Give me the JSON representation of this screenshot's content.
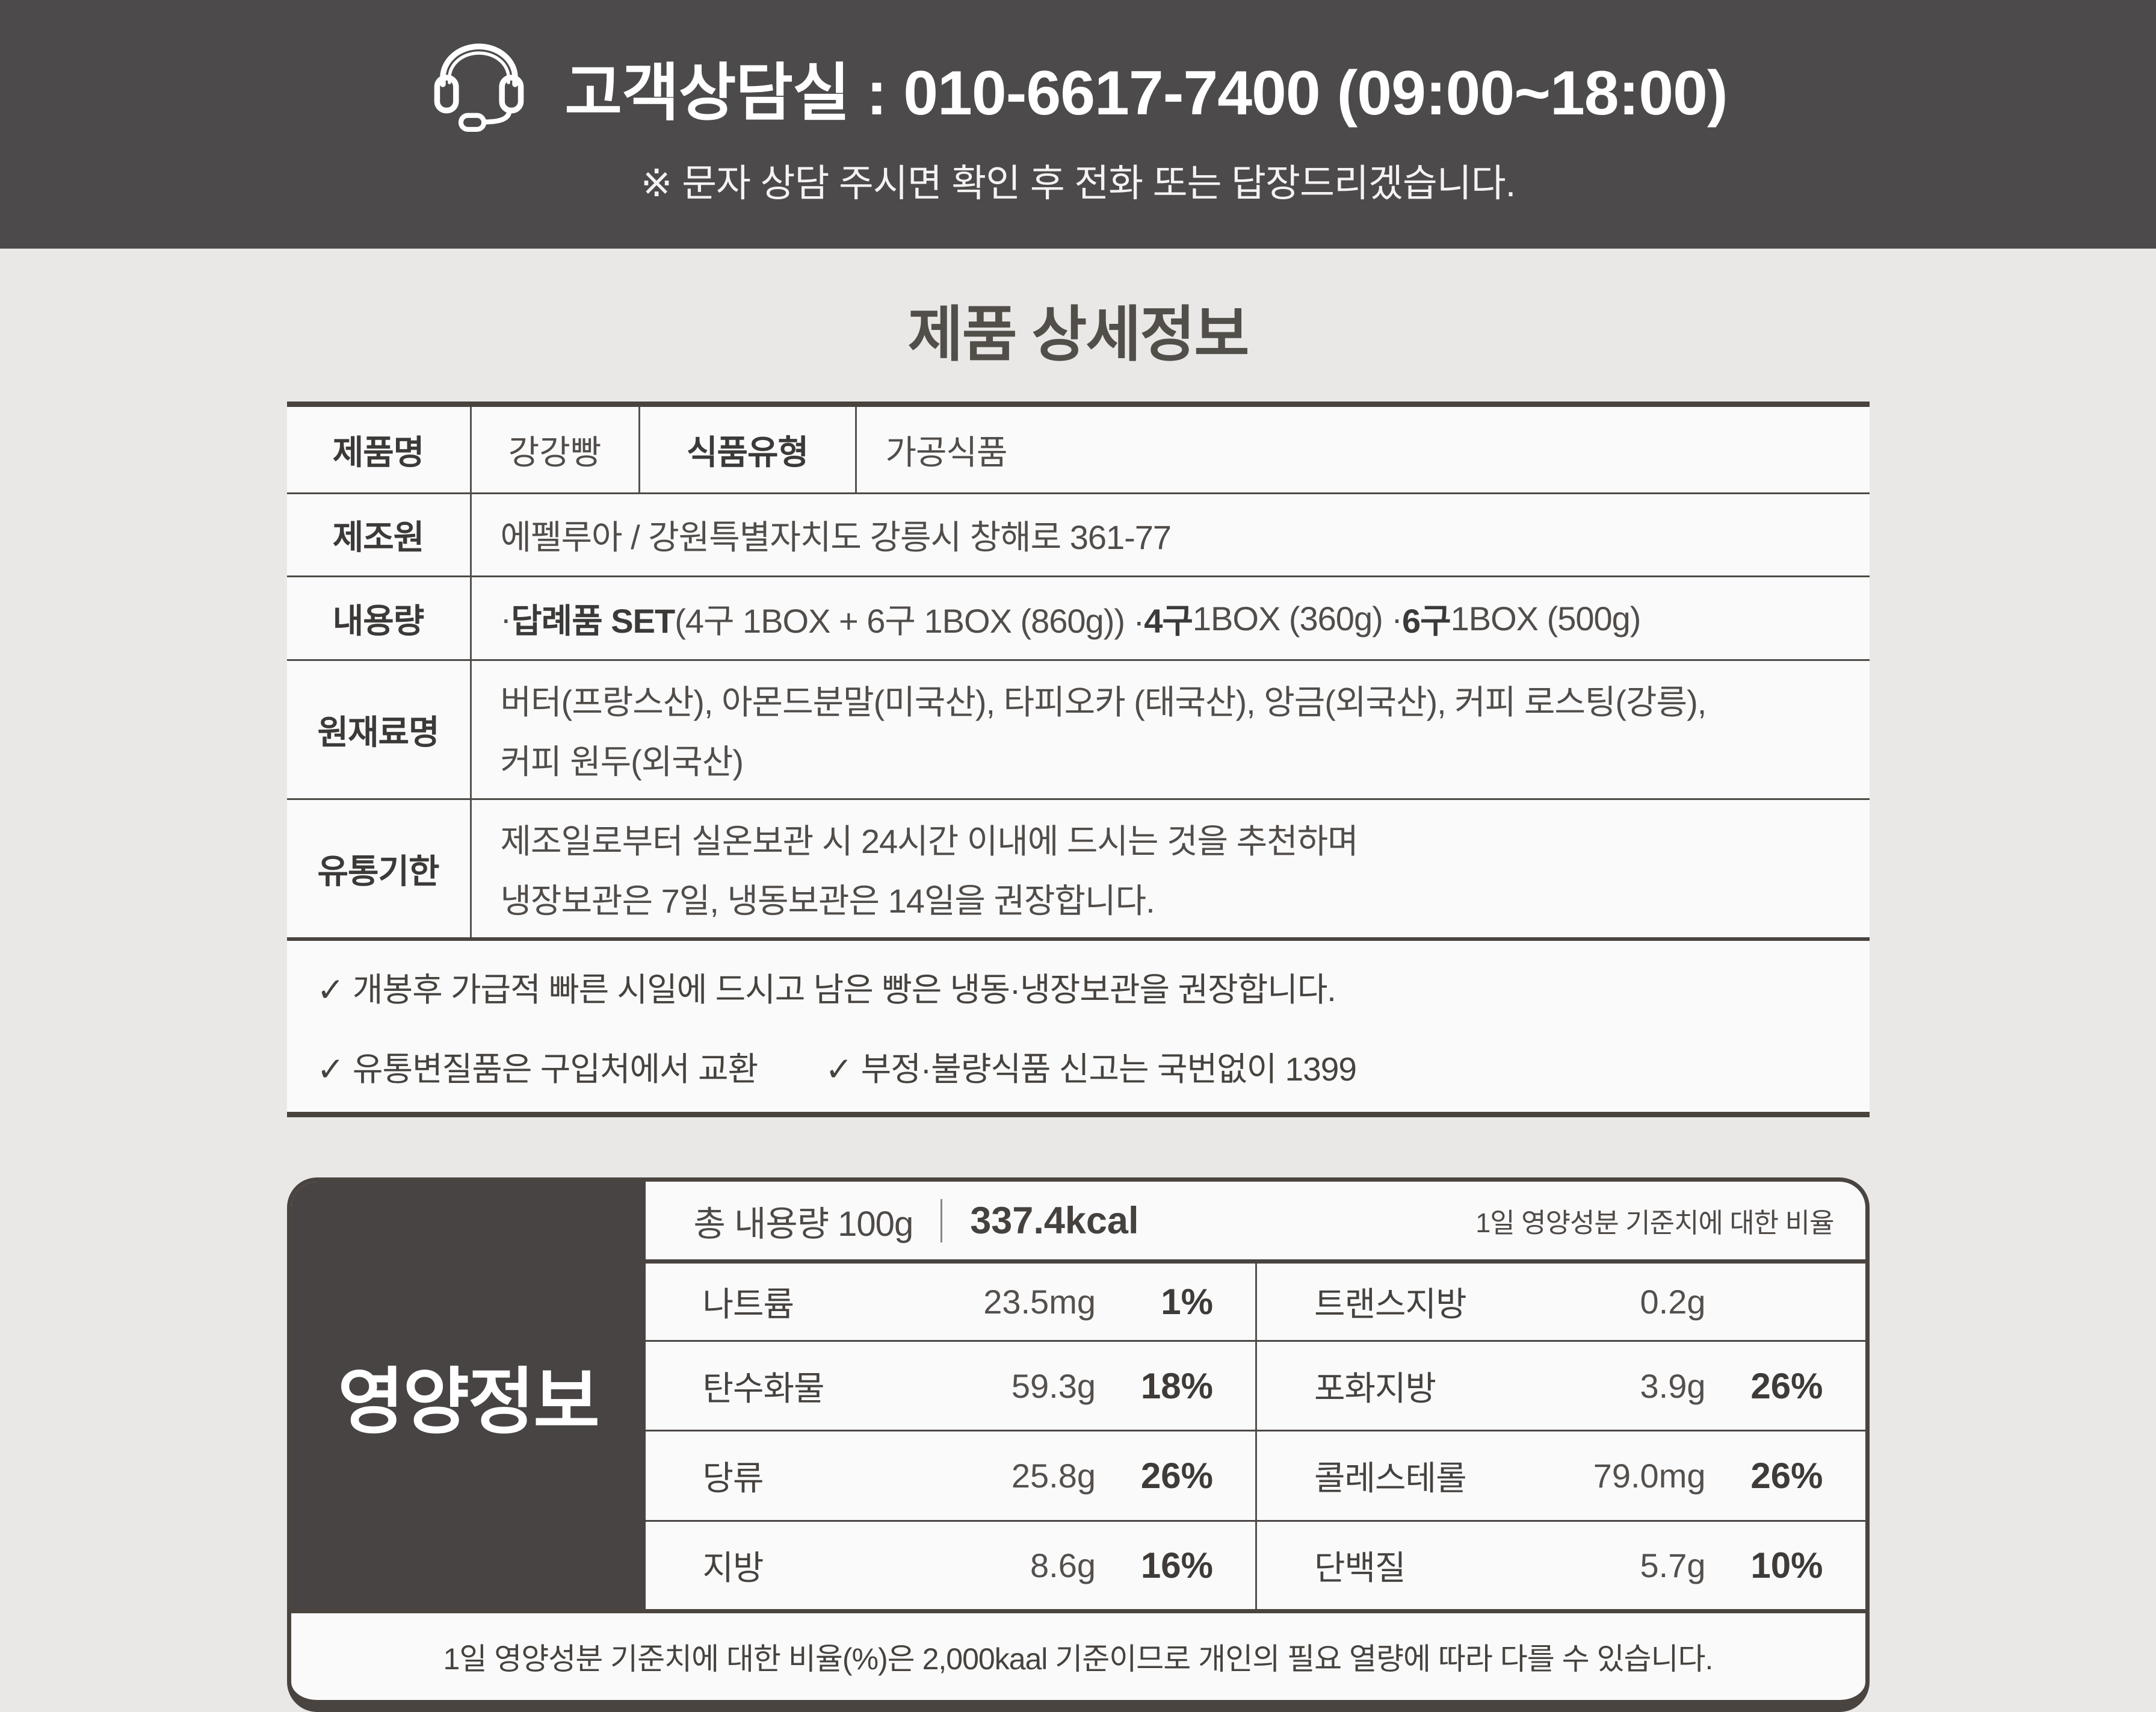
{
  "banner": {
    "icon": "headset-icon",
    "title": "고객상담실 : 010-6617-7400 (09:00~18:00)",
    "subtitle": "※ 문자 상담 주시면 확인 후 전화 또는 답장드리겠습니다."
  },
  "section_title": "제품 상세정보",
  "product_table": {
    "row1": {
      "label1": "제품명",
      "value1": "강강빵",
      "label2": "식품유형",
      "value2": "가공식품"
    },
    "maker": {
      "label": "제조원",
      "value": "에펠루아 / 강원특별자치도 강릉시 창해로 361-77"
    },
    "amount": {
      "label": "내용량",
      "segments": [
        {
          "t": "·",
          "b": 0
        },
        {
          "t": "답례품 SET",
          "b": 1
        },
        {
          "t": "(4구 1BOX + 6구 1BOX (860g)) ·",
          "b": 0
        },
        {
          "t": "4구",
          "b": 1
        },
        {
          "t": " 1BOX (360g) ·",
          "b": 0
        },
        {
          "t": "6구",
          "b": 1
        },
        {
          "t": " 1BOX (500g)",
          "b": 0
        }
      ]
    },
    "ingredients": {
      "label": "원재료명",
      "line1": "버터(프랑스산), 아몬드분말(미국산), 타피오카 (태국산), 앙금(외국산), 커피 로스팅(강릉),",
      "line2": "커피 원두(외국산)"
    },
    "expiry": {
      "label": "유통기한",
      "line1": "제조일로부터 실온보관 시 24시간 이내에 드시는 것을 추천하며",
      "line2": "냉장보관은 7일, 냉동보관은 14일을 권장합니다."
    },
    "notes": [
      "✓ 개봉후 가급적 빠른 시일에 드시고 남은 빵은 냉동·냉장보관을 권장합니다.",
      "✓ 유통변질품은 구입처에서 교환",
      "✓ 부정·불량식품 신고는 국번없이 1399"
    ]
  },
  "nutrition": {
    "panel_title": "영양정보",
    "header": {
      "serving_label": "총 내용량 100g",
      "kcal": "337.4kcal",
      "note": "1일 영양성분 기준치에 대한 비율"
    },
    "rows": [
      {
        "left": {
          "label": "나트륨",
          "value": "23.5mg",
          "pct": "1%"
        },
        "right": {
          "label": "트랜스지방",
          "value": "0.2g",
          "pct": ""
        }
      },
      {
        "left": {
          "label": "탄수화물",
          "value": "59.3g",
          "pct": "18%"
        },
        "right": {
          "label": "포화지방",
          "value": "3.9g",
          "pct": "26%"
        }
      },
      {
        "left": {
          "label": "당류",
          "value": "25.8g",
          "pct": "26%"
        },
        "right": {
          "label": "콜레스테롤",
          "value": "79.0mg",
          "pct": "26%"
        }
      },
      {
        "left": {
          "label": "지방",
          "value": "8.6g",
          "pct": "16%"
        },
        "right": {
          "label": "단백질",
          "value": "5.7g",
          "pct": "10%"
        }
      }
    ],
    "footnote": "1일 영양성분 기준치에 대한 비율(%)은 2,000kaal 기준이므로 개인의 필요 열량에 따라 다를 수 있습니다."
  },
  "colors": {
    "banner_bg": "#4c4a4a",
    "page_bg": "#e9e8e7",
    "card_bg": "#fbfafa",
    "dark_border": "#4a4440",
    "panel_bg": "#474443"
  }
}
